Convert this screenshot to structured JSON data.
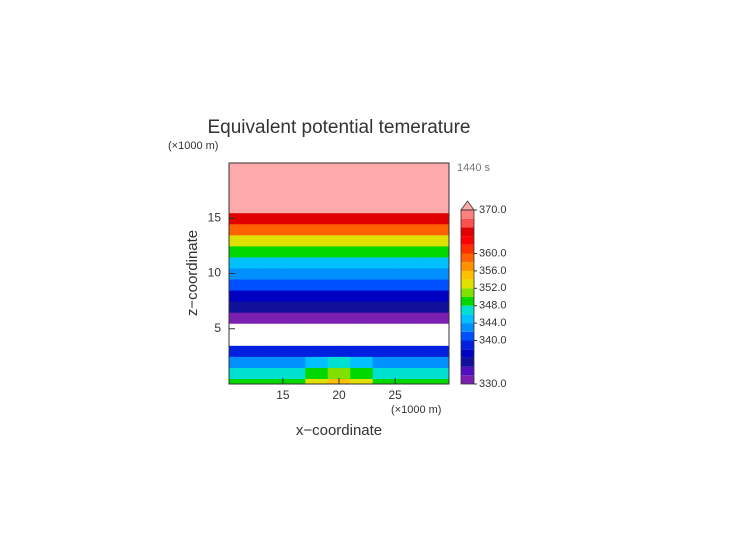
{
  "chart_data": {
    "type": "heatmap",
    "title": "Equivalent potential temerature",
    "time_label": "1440 s",
    "x_label": "x−coordinate",
    "y_label": "z−coordinate",
    "x_unit": "(×1000 m)",
    "y_unit": "(×1000 m)",
    "x": [
      10,
      12,
      14,
      16,
      18,
      20,
      22,
      24,
      26,
      28,
      30
    ],
    "y": [
      0,
      1,
      2,
      3,
      4,
      5,
      6,
      7,
      8,
      9,
      10,
      11,
      12,
      13,
      14,
      15,
      16,
      17,
      18,
      19,
      20
    ],
    "values": [
      [
        349,
        349,
        349,
        349,
        352,
        355,
        352,
        349,
        349,
        349,
        349
      ],
      [
        346,
        346,
        346,
        346,
        348,
        351,
        348,
        346,
        346,
        346,
        346
      ],
      [
        343,
        343,
        343,
        343,
        344,
        346,
        344,
        343,
        343,
        343,
        343
      ],
      [
        339,
        339,
        339,
        339,
        339,
        339,
        339,
        339,
        339,
        339,
        339
      ],
      [
        328,
        328,
        328,
        328,
        328,
        328,
        328,
        328,
        328,
        328,
        328
      ],
      [
        327,
        327,
        327,
        327,
        327,
        327,
        327,
        327,
        327,
        327,
        327
      ],
      [
        331,
        331,
        331,
        331,
        331,
        331,
        331,
        331,
        331,
        331,
        331
      ],
      [
        335,
        335,
        335,
        335,
        335,
        335,
        335,
        335,
        335,
        335,
        335
      ],
      [
        337,
        337,
        337,
        337,
        337,
        337,
        337,
        337,
        337,
        337,
        337
      ],
      [
        341,
        341,
        341,
        341,
        341,
        341,
        341,
        341,
        341,
        341,
        341
      ],
      [
        343,
        343,
        343,
        343,
        343,
        343,
        343,
        343,
        343,
        343,
        343
      ],
      [
        345,
        345,
        345,
        345,
        345,
        345,
        345,
        345,
        345,
        345,
        345
      ],
      [
        348,
        348,
        348,
        348,
        348,
        348,
        348,
        348,
        348,
        348,
        348
      ],
      [
        353,
        353,
        353,
        353,
        353,
        353,
        353,
        353,
        353,
        353,
        353
      ],
      [
        359,
        359,
        359,
        359,
        359,
        359,
        359,
        359,
        359,
        359,
        359
      ],
      [
        365,
        365,
        365,
        365,
        365,
        365,
        365,
        365,
        365,
        365,
        365
      ],
      [
        375,
        375,
        375,
        375,
        375,
        375,
        375,
        375,
        375,
        375,
        375
      ],
      [
        375,
        375,
        375,
        375,
        375,
        375,
        375,
        375,
        375,
        375,
        375
      ],
      [
        375,
        375,
        375,
        375,
        375,
        375,
        375,
        375,
        375,
        375,
        375
      ],
      [
        375,
        375,
        375,
        375,
        375,
        375,
        375,
        375,
        375,
        375,
        375
      ],
      [
        375,
        375,
        375,
        375,
        375,
        375,
        375,
        375,
        375,
        375,
        375
      ]
    ],
    "xlim": [
      10.2,
      29.8
    ],
    "ylim": [
      0,
      20
    ],
    "xticks": [
      15,
      20,
      25
    ],
    "yticks": [
      5,
      10,
      15
    ],
    "levels": [
      330,
      332,
      334,
      336,
      338,
      340,
      342,
      344,
      346,
      348,
      350,
      352,
      354,
      356,
      358,
      360,
      362,
      364,
      366,
      368,
      370
    ],
    "colors": [
      "#7a1fb0",
      "#5010c0",
      "#10109a",
      "#0000c0",
      "#0020e0",
      "#0050ff",
      "#0090ff",
      "#00c0ff",
      "#00e0d0",
      "#00d800",
      "#80e000",
      "#e0e000",
      "#ffc000",
      "#ff9000",
      "#ff6000",
      "#ff3000",
      "#ff0000",
      "#e00000",
      "#ff5050",
      "#ff8080"
    ],
    "over_color": "#ffaaaa",
    "colorbar_ticks": [
      {
        "value": 330,
        "label": "330.0"
      },
      {
        "value": 340,
        "label": "340.0"
      },
      {
        "value": 344,
        "label": "344.0"
      },
      {
        "value": 348,
        "label": "348.0"
      },
      {
        "value": 352,
        "label": "352.0"
      },
      {
        "value": 356,
        "label": "356.0"
      },
      {
        "value": 360,
        "label": "360.0"
      },
      {
        "value": 370,
        "label": "370.0"
      }
    ]
  }
}
